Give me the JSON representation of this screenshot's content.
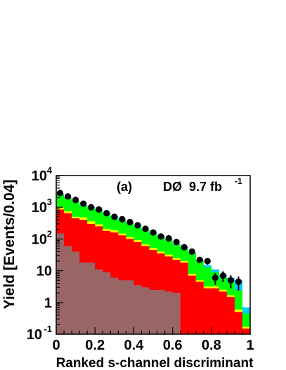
{
  "chart_data": {
    "type": "area",
    "title": "",
    "xlabel": "Ranked s-channel discriminant",
    "ylabel": "Yield [Events/0.04]",
    "xlim": [
      0,
      1
    ],
    "ylim": [
      0.1,
      10000
    ],
    "yscale": "log",
    "grid": false,
    "x_ticks": [
      "0",
      "0.2",
      "0.4",
      "0.6",
      "0.8",
      "1"
    ],
    "y_ticks": [
      {
        "value": 0.1,
        "base": "10",
        "exp": "-1"
      },
      {
        "value": 1,
        "label": "1"
      },
      {
        "value": 10,
        "label": "10"
      },
      {
        "value": 100,
        "base": "10",
        "exp": "2"
      },
      {
        "value": 1000,
        "base": "10",
        "exp": "3"
      },
      {
        "value": 10000,
        "base": "10",
        "exp": "4"
      }
    ],
    "annotations": {
      "panel": "(a)",
      "experiment": "DØ",
      "lumi": "9.7 fb",
      "lumi_exp": "-1"
    },
    "bin_edges": [
      0,
      0.04,
      0.08,
      0.12,
      0.16,
      0.2,
      0.24,
      0.28,
      0.32,
      0.36,
      0.4,
      0.44,
      0.48,
      0.52,
      0.56,
      0.6,
      0.64,
      0.68,
      0.72,
      0.76,
      0.8,
      0.84,
      0.88,
      0.92,
      0.96,
      1.0
    ],
    "stack_colors": [
      "#996666",
      "#ff0000",
      "#ffff00",
      "#00ff00",
      "#00ccff"
    ],
    "stack_tops": [
      [
        150,
        60,
        40,
        18,
        18,
        11,
        9,
        6,
        5,
        5,
        3.5,
        3,
        2.5,
        2.5,
        2.2,
        2,
        0.1,
        0.1,
        0.1,
        0.1,
        0.1,
        0.1,
        0.1,
        0.1,
        0.1
      ],
      [
        850,
        650,
        450,
        400,
        300,
        250,
        180,
        160,
        130,
        100,
        80,
        60,
        45,
        35,
        28,
        22,
        18,
        7,
        4.5,
        2.8,
        2.8,
        2.2,
        1.5,
        0.5,
        0.15
      ],
      [
        1000,
        750,
        500,
        480,
        360,
        290,
        210,
        190,
        150,
        115,
        92,
        68,
        52,
        40,
        32,
        25,
        20,
        8,
        5,
        3.2,
        3.2,
        2.5,
        1.7,
        0.6,
        0.17
      ],
      [
        2500,
        1900,
        1500,
        1100,
        950,
        780,
        600,
        470,
        380,
        300,
        240,
        190,
        145,
        115,
        90,
        65,
        50,
        35,
        20,
        13,
        9,
        6,
        4.3,
        2.4,
        0.45
      ],
      [
        2700,
        2050,
        1600,
        1200,
        1030,
        850,
        650,
        520,
        420,
        330,
        265,
        210,
        160,
        126,
        100,
        72,
        55,
        38,
        22,
        15,
        11,
        7.5,
        6,
        5,
        0.7
      ]
    ],
    "data_points": {
      "x": [
        0.02,
        0.06,
        0.1,
        0.14,
        0.18,
        0.22,
        0.26,
        0.3,
        0.34,
        0.38,
        0.42,
        0.46,
        0.5,
        0.54,
        0.58,
        0.62,
        0.66,
        0.7,
        0.74,
        0.78,
        0.82,
        0.86,
        0.9,
        0.94
      ],
      "y": [
        2800,
        2200,
        1700,
        1300,
        1000,
        850,
        650,
        500,
        420,
        340,
        270,
        210,
        160,
        120,
        105,
        80,
        55,
        40,
        22,
        20,
        6,
        7,
        5,
        4.5
      ],
      "err": [
        0,
        0,
        0,
        0,
        0,
        0,
        0,
        0,
        0,
        0,
        0,
        0,
        0,
        0,
        0,
        0,
        7,
        6,
        4.5,
        4.5,
        2.4,
        2.6,
        2.2,
        2.1
      ]
    }
  }
}
